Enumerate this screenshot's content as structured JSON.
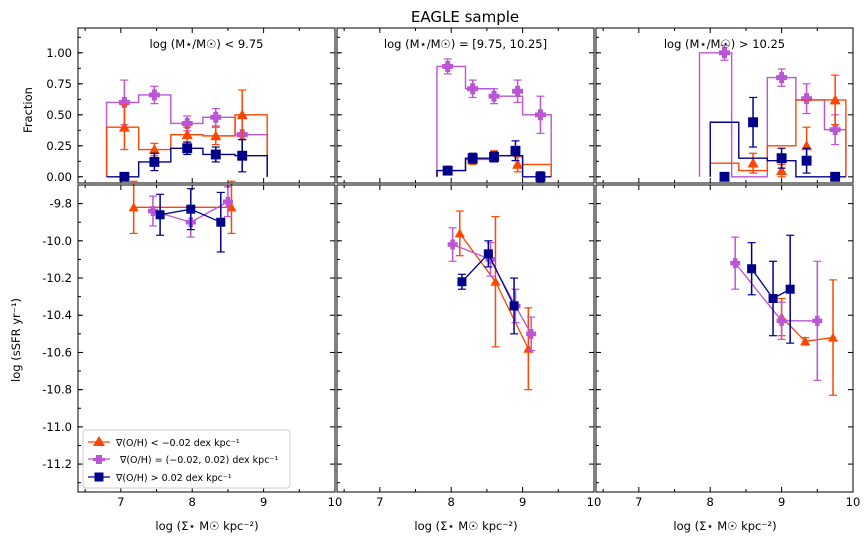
{
  "title": "EAGLE sample",
  "colors": {
    "neg": "#ff4500",
    "flat": "#ba55d3",
    "pos": "#00008b"
  },
  "chart_data": {
    "type": "grouped-step-and-errorbar",
    "title": "EAGLE sample",
    "xlabel": "log (Σ⋆ M☉ kpc⁻²)",
    "xlim": [
      6.4,
      10
    ],
    "xticks": [
      "7",
      "8",
      "9",
      "10"
    ],
    "columns": [
      {
        "label": "log (M⋆/M☉) < 9.75"
      },
      {
        "label": "log (M⋆/M☉) = [9.75, 10.25]"
      },
      {
        "label": "log (M⋆/M☉) > 10.25"
      }
    ],
    "legend": {
      "position": "lower-left",
      "entries": [
        {
          "key": "neg",
          "label": "∇(O/H) < −0.02 dex kpc⁻¹"
        },
        {
          "key": "flat",
          "label": "∇(O/H) = (−0.02, 0.02) dex kpc⁻¹"
        },
        {
          "key": "pos",
          "label": "∇(O/H) > 0.02 dex kpc⁻¹"
        }
      ]
    },
    "fraction": {
      "ylabel": "Fraction",
      "ylim": [
        -0.05,
        1.2
      ],
      "yticks": [
        "0.00",
        "0.25",
        "0.50",
        "0.75",
        "1.00"
      ],
      "panels": [
        {
          "series": [
            {
              "key": "neg",
              "edges": [
                6.8,
                7.25,
                7.7,
                8.15,
                8.6,
                9.05
              ],
              "steps": [
                0.4,
                0.22,
                0.34,
                0.33,
                0.5
              ],
              "points": [
                {
                  "x": 7.05,
                  "y": 0.4,
                  "err": 0.18
                },
                {
                  "x": 7.47,
                  "y": 0.22,
                  "err": 0.05
                },
                {
                  "x": 7.93,
                  "y": 0.34,
                  "err": 0.06
                },
                {
                  "x": 8.33,
                  "y": 0.33,
                  "err": 0.07
                },
                {
                  "x": 8.7,
                  "y": 0.5,
                  "err": 0.2
                }
              ]
            },
            {
              "key": "flat",
              "edges": [
                6.8,
                7.25,
                7.7,
                8.15,
                8.6,
                9.05
              ],
              "steps": [
                0.6,
                0.66,
                0.43,
                0.48,
                0.34
              ],
              "points": [
                {
                  "x": 7.05,
                  "y": 0.6,
                  "err": 0.18
                },
                {
                  "x": 7.47,
                  "y": 0.66,
                  "err": 0.07
                },
                {
                  "x": 7.93,
                  "y": 0.43,
                  "err": 0.06
                },
                {
                  "x": 8.33,
                  "y": 0.48,
                  "err": 0.07
                },
                {
                  "x": 8.7,
                  "y": 0.34,
                  "err": 0.15
                }
              ]
            },
            {
              "key": "pos",
              "edges": [
                6.8,
                7.25,
                7.7,
                8.15,
                8.6,
                9.05
              ],
              "steps": [
                0.0,
                0.12,
                0.23,
                0.18,
                0.17
              ],
              "points": [
                {
                  "x": 7.05,
                  "y": 0.0,
                  "err": 0.02
                },
                {
                  "x": 7.47,
                  "y": 0.12,
                  "err": 0.07
                },
                {
                  "x": 7.93,
                  "y": 0.23,
                  "err": 0.05
                },
                {
                  "x": 8.33,
                  "y": 0.18,
                  "err": 0.06
                },
                {
                  "x": 8.7,
                  "y": 0.17,
                  "err": 0.13
                }
              ]
            }
          ]
        },
        {
          "series": [
            {
              "key": "neg",
              "edges": [
                7.8,
                8.2,
                8.6,
                9.0,
                9.4
              ],
              "steps": [
                0.05,
                0.14,
                0.17,
                0.1
              ],
              "points": [
                {
                  "x": 7.95,
                  "y": 0.05,
                  "err": 0.03
                },
                {
                  "x": 8.3,
                  "y": 0.14,
                  "err": 0.04
                },
                {
                  "x": 8.6,
                  "y": 0.17,
                  "err": 0.04
                },
                {
                  "x": 8.93,
                  "y": 0.1,
                  "err": 0.06
                }
              ]
            },
            {
              "key": "flat",
              "edges": [
                7.8,
                8.2,
                8.6,
                9.0,
                9.4
              ],
              "steps": [
                0.89,
                0.71,
                0.65,
                0.5
              ],
              "points": [
                {
                  "x": 7.95,
                  "y": 0.89,
                  "err": 0.06
                },
                {
                  "x": 8.3,
                  "y": 0.71,
                  "err": 0.07
                },
                {
                  "x": 8.6,
                  "y": 0.65,
                  "err": 0.06
                },
                {
                  "x": 8.93,
                  "y": 0.69,
                  "err": 0.09
                },
                {
                  "x": 9.25,
                  "y": 0.5,
                  "err": 0.15
                }
              ]
            },
            {
              "key": "pos",
              "edges": [
                7.8,
                8.2,
                8.6,
                9.0,
                9.4
              ],
              "steps": [
                0.05,
                0.15,
                0.17,
                0.0
              ],
              "points": [
                {
                  "x": 7.95,
                  "y": 0.05,
                  "err": 0.02
                },
                {
                  "x": 8.3,
                  "y": 0.15,
                  "err": 0.04
                },
                {
                  "x": 8.6,
                  "y": 0.16,
                  "err": 0.04
                },
                {
                  "x": 8.9,
                  "y": 0.21,
                  "err": 0.08
                },
                {
                  "x": 9.25,
                  "y": 0.0,
                  "err": 0.04
                }
              ]
            }
          ]
        },
        {
          "series": [
            {
              "key": "neg",
              "edges": [
                8.0,
                8.4,
                8.8,
                9.2,
                9.6,
                9.9
              ],
              "steps": [
                0.11,
                0.05,
                0.25,
                0.62,
                0.62
              ],
              "points": [
                {
                  "x": 8.2,
                  "y": 0.0,
                  "err": 0.02
                },
                {
                  "x": 8.6,
                  "y": 0.11,
                  "err": 0.08
                },
                {
                  "x": 9.0,
                  "y": 0.05,
                  "err": 0.05
                },
                {
                  "x": 9.35,
                  "y": 0.25,
                  "err": 0.15
                },
                {
                  "x": 9.75,
                  "y": 0.62,
                  "err": 0.2
                }
              ]
            },
            {
              "key": "flat",
              "edges": [
                7.85,
                8.3,
                8.8,
                9.2,
                9.6,
                9.9
              ],
              "steps": [
                1.0,
                0.0,
                0.8,
                0.62,
                0.38
              ],
              "points": [
                {
                  "x": 8.2,
                  "y": 1.0,
                  "err": 0.06
                },
                {
                  "x": 9.0,
                  "y": 0.8,
                  "err": 0.07
                },
                {
                  "x": 9.35,
                  "y": 0.63,
                  "err": 0.12
                },
                {
                  "x": 9.75,
                  "y": 0.38,
                  "err": 0.12
                }
              ]
            },
            {
              "key": "pos",
              "edges": [
                8.0,
                8.4,
                8.8,
                9.2,
                9.6,
                9.9
              ],
              "steps": [
                0.44,
                0.15,
                0.13,
                0.0,
                0.0
              ],
              "points": [
                {
                  "x": 8.2,
                  "y": 0.0,
                  "err": 0.02
                },
                {
                  "x": 8.6,
                  "y": 0.44,
                  "err": 0.2
                },
                {
                  "x": 9.0,
                  "y": 0.15,
                  "err": 0.08
                },
                {
                  "x": 9.35,
                  "y": 0.13,
                  "err": 0.1
                },
                {
                  "x": 9.75,
                  "y": 0.0,
                  "err": 0.02
                }
              ]
            }
          ]
        }
      ]
    },
    "ssfr": {
      "ylabel": "log (sSFR yr⁻¹)",
      "ylim": [
        -11.35,
        -9.7
      ],
      "yticks": [
        "-9.8",
        "-10.0",
        "-10.2",
        "-10.4",
        "-10.6",
        "-10.8",
        "-11.0",
        "-11.2"
      ],
      "panels": [
        {
          "series": [
            {
              "key": "neg",
              "points": [
                {
                  "x": 7.18,
                  "y": -9.82,
                  "err": 0.14
                },
                {
                  "x": 8.55,
                  "y": -9.82,
                  "err": 0.14
                }
              ]
            },
            {
              "key": "flat",
              "points": [
                {
                  "x": 7.45,
                  "y": -9.84,
                  "err": 0.08
                },
                {
                  "x": 7.98,
                  "y": -9.9,
                  "err": 0.08
                },
                {
                  "x": 8.5,
                  "y": -9.79,
                  "err": 0.08
                }
              ]
            },
            {
              "key": "pos",
              "points": [
                {
                  "x": 7.55,
                  "y": -9.86,
                  "err": 0.11
                },
                {
                  "x": 7.98,
                  "y": -9.83,
                  "err": 0.11
                },
                {
                  "x": 8.4,
                  "y": -9.9,
                  "err": 0.16
                }
              ]
            }
          ]
        },
        {
          "series": [
            {
              "key": "neg",
              "points": [
                {
                  "x": 8.12,
                  "y": -9.96,
                  "err": 0.12
                },
                {
                  "x": 8.62,
                  "y": -10.22,
                  "err": 0.35
                },
                {
                  "x": 9.08,
                  "y": -10.58,
                  "err": 0.22
                }
              ]
            },
            {
              "key": "flat",
              "points": [
                {
                  "x": 8.02,
                  "y": -10.02,
                  "err": 0.09
                },
                {
                  "x": 8.55,
                  "y": -10.1,
                  "err": 0.09
                },
                {
                  "x": 8.9,
                  "y": -10.35,
                  "err": 0.09
                },
                {
                  "x": 9.12,
                  "y": -10.5,
                  "err": 0.09
                }
              ]
            },
            {
              "key": "pos",
              "points": [
                {
                  "x": 8.15,
                  "y": -10.22,
                  "err": 0.04
                },
                {
                  "x": 8.52,
                  "y": -10.07,
                  "err": 0.07
                },
                {
                  "x": 8.88,
                  "y": -10.35,
                  "err": 0.15
                }
              ]
            }
          ]
        },
        {
          "series": [
            {
              "key": "neg",
              "points": [
                {
                  "x": 9.0,
                  "y": -10.41,
                  "err": 0.1
                },
                {
                  "x": 9.33,
                  "y": -10.54,
                  "err": 0.02
                },
                {
                  "x": 9.72,
                  "y": -10.52,
                  "err": 0.31
                }
              ]
            },
            {
              "key": "flat",
              "points": [
                {
                  "x": 8.35,
                  "y": -10.12,
                  "err": 0.14
                },
                {
                  "x": 9.0,
                  "y": -10.43,
                  "err": 0.1
                },
                {
                  "x": 9.5,
                  "y": -10.43,
                  "err": 0.32
                }
              ]
            },
            {
              "key": "pos",
              "points": [
                {
                  "x": 8.58,
                  "y": -10.15,
                  "err": 0.14
                },
                {
                  "x": 8.88,
                  "y": -10.31,
                  "err": 0.2
                },
                {
                  "x": 9.12,
                  "y": -10.26,
                  "err": 0.29
                }
              ]
            }
          ]
        }
      ]
    }
  }
}
